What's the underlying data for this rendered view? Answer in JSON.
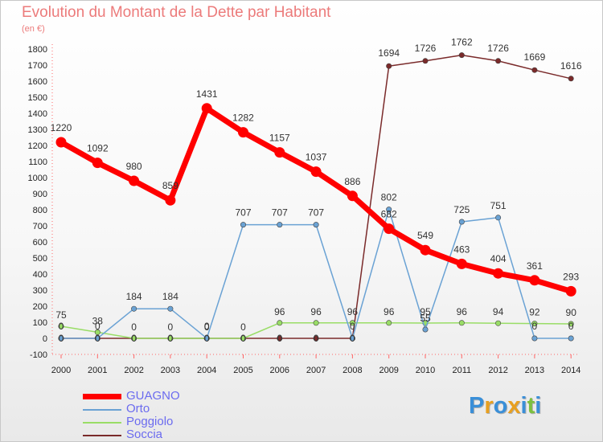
{
  "chart_data": {
    "type": "line",
    "title": "Evolution du Montant de la Dette par Habitant",
    "subtitle": "(en €)",
    "x": [
      "2000",
      "2001",
      "2002",
      "2003",
      "2004",
      "2005",
      "2006",
      "2007",
      "2008",
      "2009",
      "2010",
      "2011",
      "2012",
      "2013",
      "2014"
    ],
    "y_ticks": [
      -100,
      0,
      100,
      200,
      300,
      400,
      500,
      600,
      700,
      800,
      900,
      1000,
      1100,
      1200,
      1300,
      1400,
      1500,
      1600,
      1700,
      1800
    ],
    "ylim": [
      -100,
      1800
    ],
    "grid": false,
    "legend_position": "bottom-left",
    "series": [
      {
        "name": "GUAGNO",
        "color": "#ff0000",
        "values": [
          1220,
          1092,
          980,
          859,
          1431,
          1282,
          1157,
          1037,
          886,
          682,
          549,
          463,
          404,
          361,
          293
        ],
        "labels": [
          "1220",
          "1092",
          "980",
          "859",
          "1431",
          "1282",
          "1157",
          "1037",
          "886",
          "682",
          "549",
          "463",
          "404",
          "361",
          "293"
        ]
      },
      {
        "name": "Orto",
        "color": "#6aa2d4",
        "values": [
          0,
          0,
          184,
          184,
          0,
          707,
          707,
          707,
          0,
          802,
          55,
          725,
          751,
          0,
          0
        ],
        "labels": [
          "0",
          "0",
          "184",
          "184",
          "0",
          "707",
          "707",
          "707",
          "0",
          "802",
          "55",
          "725",
          "751",
          "0",
          "0"
        ]
      },
      {
        "name": "Poggiolo",
        "color": "#99dd66",
        "values": [
          75,
          38,
          0,
          0,
          0,
          0,
          96,
          96,
          96,
          96,
          95,
          96,
          94,
          92,
          90
        ],
        "labels": [
          "75",
          "38",
          "0",
          "0",
          "0",
          "0",
          "96",
          "96",
          "96",
          "96",
          "95",
          "96",
          "94",
          "92",
          "90"
        ]
      },
      {
        "name": "Soccia",
        "color": "#7a2a2a",
        "values": [
          0,
          0,
          0,
          0,
          0,
          0,
          0,
          0,
          0,
          1694,
          1726,
          1762,
          1726,
          1669,
          1616
        ],
        "labels": [
          "0",
          "0",
          "0",
          "0",
          "0",
          "0",
          "0",
          "0",
          "0",
          "1694",
          "1726",
          "1762",
          "1726",
          "1669",
          "1616"
        ]
      }
    ]
  },
  "branding": {
    "logo_text": [
      "P",
      "r",
      "o",
      "x",
      "i",
      "t",
      "i"
    ],
    "logo_colors": [
      "#3a8fd8",
      "#e8a020",
      "#3a8fd8",
      "#e8a020",
      "#3a8fd8",
      "#7cc040",
      "#3a8fd8"
    ]
  }
}
